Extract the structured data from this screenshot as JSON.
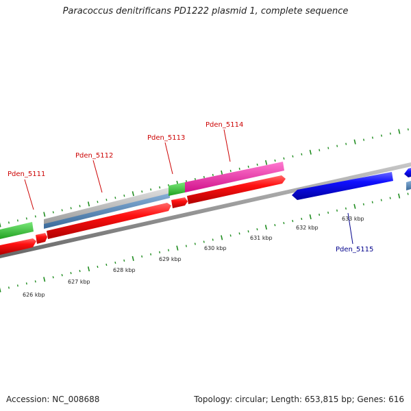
{
  "title": "Paracoccus denitrificans PD1222 plasmid 1, complete sequence",
  "accession": "Accession: NC_008688",
  "summary": "Topology: circular; Length: 653,815 bp; Genes: 616",
  "colors": {
    "forward_cds": "#e8001c",
    "reverse_cds": "#1a1adc",
    "gray_feature": "#b8b8b8",
    "steel_feature": "#4a7fb5",
    "green_feature": "#3ec43e",
    "pink_feature": "#ee2aa8",
    "backbone": "#8a8a8a",
    "ticks": "#1e8c1e",
    "label_red": "#cc0000",
    "label_blue": "#00008b"
  },
  "scale_labels": [
    "626 kbp",
    "627 kbp",
    "628 kbp",
    "629 kbp",
    "630 kbp",
    "631 kbp",
    "632 kbp",
    "633 kbp"
  ],
  "gene_labels": [
    {
      "name": "Pden_5111",
      "strand": "forward"
    },
    {
      "name": "Pden_5112",
      "strand": "forward"
    },
    {
      "name": "Pden_5113",
      "strand": "forward"
    },
    {
      "name": "Pden_5114",
      "strand": "forward"
    },
    {
      "name": "Pden_5115",
      "strand": "reverse"
    }
  ]
}
